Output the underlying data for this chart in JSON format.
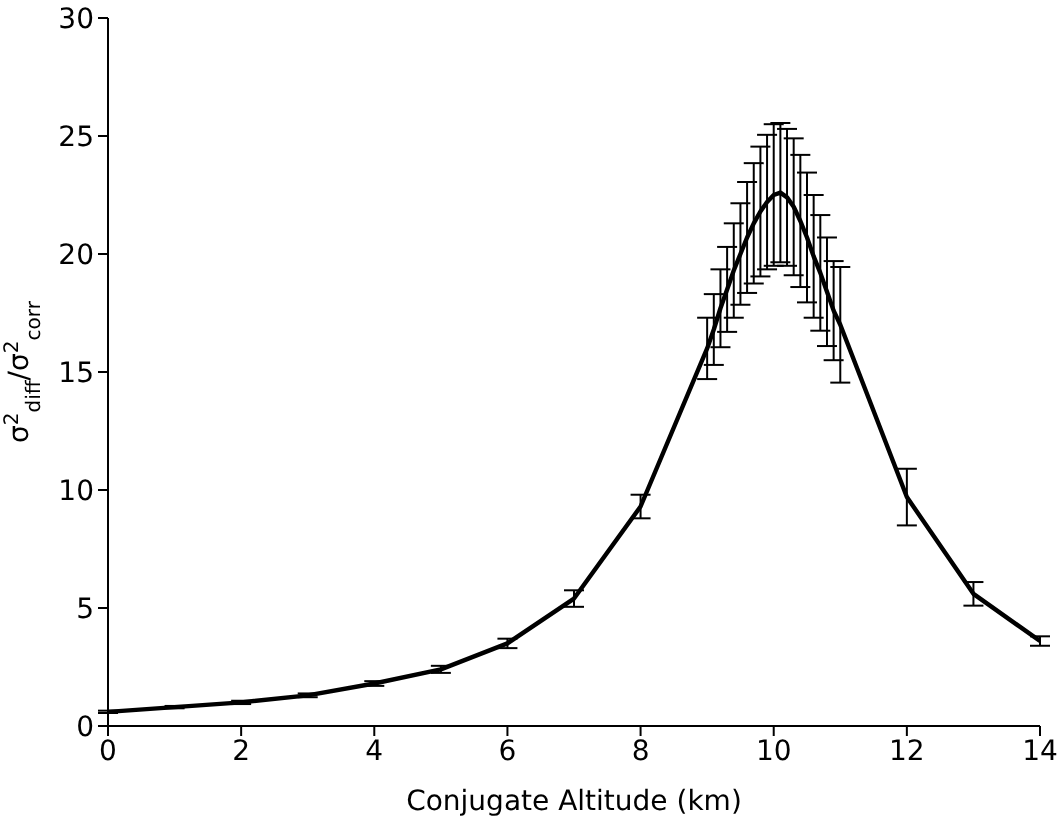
{
  "chart_data": {
    "type": "line",
    "xlabel": "Conjugate Altitude (km)",
    "ylabel": "σ$^{2}$$_{diff}$/σ$^{2}$$_{corr}$",
    "x": [
      0,
      1,
      2,
      3,
      4,
      5,
      6,
      7,
      8,
      9.0,
      9.1,
      9.2,
      9.3,
      9.4,
      9.5,
      9.6,
      9.7,
      9.8,
      9.9,
      10.0,
      10.1,
      10.2,
      10.3,
      10.4,
      10.5,
      10.6,
      10.7,
      10.8,
      10.9,
      11.0,
      12,
      13,
      14
    ],
    "series": [
      {
        "color": "#000000",
        "values": [
          0.6,
          0.8,
          1.0,
          1.3,
          1.8,
          2.4,
          3.5,
          5.4,
          9.3,
          16.0,
          16.8,
          17.7,
          18.5,
          19.3,
          20.0,
          20.7,
          21.3,
          21.8,
          22.2,
          22.5,
          22.6,
          22.4,
          22.0,
          21.4,
          20.7,
          19.9,
          19.2,
          18.4,
          17.6,
          17.0,
          9.7,
          5.6,
          3.6
        ],
        "errors": [
          0.05,
          0.05,
          0.07,
          0.08,
          0.1,
          0.15,
          0.2,
          0.35,
          0.5,
          1.3,
          1.5,
          1.65,
          1.8,
          2.0,
          2.15,
          2.35,
          2.55,
          2.75,
          2.85,
          3.0,
          2.95,
          2.9,
          2.9,
          2.8,
          2.75,
          2.6,
          2.45,
          2.3,
          2.1,
          2.45,
          1.2,
          0.5,
          0.2
        ]
      }
    ],
    "xlim": [
      0,
      14
    ],
    "xticks": [
      0,
      2,
      4,
      6,
      8,
      10,
      12,
      14
    ],
    "ylim": [
      0,
      30
    ],
    "yticks": [
      0,
      5,
      10,
      15,
      20,
      25,
      30
    ],
    "marker": "none",
    "line_style": "solid"
  }
}
